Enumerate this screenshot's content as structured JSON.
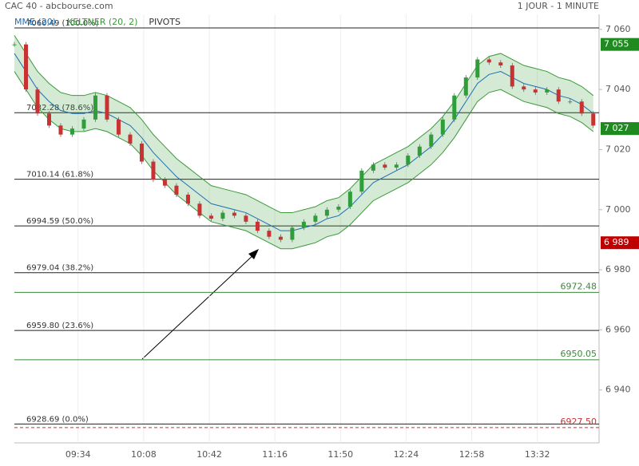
{
  "chart_data": {
    "type": "candle-line",
    "title": "CAC 40 - abcbourse.com",
    "period": "1 JOUR - 1 MINUTE",
    "legend": [
      {
        "name": "MME (20)",
        "color": "#1f6fb4"
      },
      {
        "name": "KELTNER (20, 2)",
        "color": "#3a9a3a"
      },
      {
        "name": "PIVOTS",
        "color": "#333333"
      }
    ],
    "x": [
      541,
      547,
      553,
      559,
      565,
      571,
      577,
      583,
      589,
      595,
      601,
      607,
      613,
      619,
      625,
      631,
      637,
      643,
      649,
      655,
      661,
      667,
      673,
      679,
      685,
      691,
      697,
      703,
      709,
      715,
      721,
      727,
      733,
      739,
      745,
      751,
      757,
      763,
      769,
      775,
      781,
      787,
      793,
      799,
      805,
      811,
      817,
      823,
      829,
      835,
      841
    ],
    "xlim": [
      541,
      844
    ],
    "xticks": [
      {
        "value": 574,
        "label": "09:34"
      },
      {
        "value": 608,
        "label": "10:08"
      },
      {
        "value": 642,
        "label": "10:42"
      },
      {
        "value": 676,
        "label": "11:16"
      },
      {
        "value": 710,
        "label": "11:50"
      },
      {
        "value": 744,
        "label": "12:24"
      },
      {
        "value": 778,
        "label": "12:58"
      },
      {
        "value": 812,
        "label": "13:32"
      }
    ],
    "ylim": [
      6924,
      7065
    ],
    "yticks": [
      {
        "value": 7060,
        "label": "7 060"
      },
      {
        "value": 7040,
        "label": "7 040"
      },
      {
        "value": 7020,
        "label": "7 020"
      },
      {
        "value": 7000,
        "label": "7 000"
      },
      {
        "value": 6980,
        "label": "6 980"
      },
      {
        "value": 6960,
        "label": "6 960"
      },
      {
        "value": 6940,
        "label": "6 940"
      }
    ],
    "up_color": "#2e9e3a",
    "down_color": "#c83232",
    "price": [
      7055,
      7040,
      7032,
      7028,
      7025,
      7027,
      7030,
      7038,
      7030,
      7025,
      7022,
      7016,
      7010,
      7008,
      7005,
      7002,
      6998,
      6997,
      6999,
      6998,
      6996,
      6993,
      6991,
      6990,
      6994,
      6996,
      6998,
      7000,
      7001,
      7006,
      7013,
      7015,
      7014,
      7015,
      7018,
      7021,
      7025,
      7030,
      7038,
      7044,
      7050,
      7049,
      7048,
      7041,
      7040,
      7039,
      7040,
      7036,
      7036,
      7032,
      7028
    ],
    "mme": [
      7052,
      7046,
      7040,
      7036,
      7033,
      7032,
      7032,
      7033,
      7032,
      7030,
      7028,
      7024,
      7019,
      7015,
      7011,
      7008,
      7005,
      7002,
      7001,
      7000,
      6999,
      6997,
      6995,
      6993,
      6993,
      6994,
      6995,
      6997,
      6998,
      7001,
      7005,
      7009,
      7011,
      7013,
      7015,
      7018,
      7021,
      7025,
      7030,
      7036,
      7042,
      7045,
      7046,
      7044,
      7042,
      7041,
      7040,
      7038,
      7037,
      7035,
      7032
    ],
    "upper": [
      7058,
      7052,
      7046,
      7042,
      7039,
      7038,
      7038,
      7039,
      7038,
      7036,
      7034,
      7030,
      7025,
      7021,
      7017,
      7014,
      7011,
      7008,
      7007,
      7006,
      7005,
      7003,
      7001,
      6999,
      6999,
      7000,
      7001,
      7003,
      7004,
      7007,
      7011,
      7015,
      7017,
      7019,
      7021,
      7024,
      7027,
      7031,
      7036,
      7042,
      7048,
      7051,
      7052,
      7050,
      7048,
      7047,
      7046,
      7044,
      7043,
      7041,
      7038
    ],
    "lower": [
      7046,
      7040,
      7034,
      7030,
      7027,
      7026,
      7026,
      7027,
      7026,
      7024,
      7022,
      7018,
      7013,
      7009,
      7005,
      7002,
      6999,
      6996,
      6995,
      6994,
      6993,
      6991,
      6989,
      6987,
      6987,
      6988,
      6989,
      6991,
      6992,
      6995,
      6999,
      7003,
      7005,
      7007,
      7009,
      7012,
      7015,
      7019,
      7024,
      7030,
      7036,
      7039,
      7040,
      7038,
      7036,
      7035,
      7034,
      7032,
      7031,
      7029,
      7026
    ],
    "fib_levels": [
      {
        "value": 7060.49,
        "label": "7060.49 (100.0%)"
      },
      {
        "value": 7032.28,
        "label": "7032.28 (78.6%)"
      },
      {
        "value": 7010.14,
        "label": "7010.14 (61.8%)"
      },
      {
        "value": 6994.59,
        "label": "6994.59 (50.0%)"
      },
      {
        "value": 6979.04,
        "label": "6979.04 (38.2%)"
      },
      {
        "value": 6959.8,
        "label": "6959.80 (23.6%)"
      },
      {
        "value": 6928.69,
        "label": "6928.69 (0.0%)"
      }
    ],
    "pivots": [
      {
        "value": 6972.48,
        "label": "6972.48",
        "color": "#3a8a3a"
      },
      {
        "value": 6950.05,
        "label": "6950.05",
        "color": "#3a8a3a"
      },
      {
        "value": 6927.5,
        "label": "6927.50",
        "color": "#c83232"
      }
    ],
    "badges": [
      {
        "value": 7055,
        "label": "7 055",
        "color": "#1f8a1f"
      },
      {
        "value": 7027,
        "label": "7 027",
        "color": "#1f8a1f"
      },
      {
        "value": 6989,
        "label": "6 989",
        "color": "#c00000"
      }
    ]
  }
}
